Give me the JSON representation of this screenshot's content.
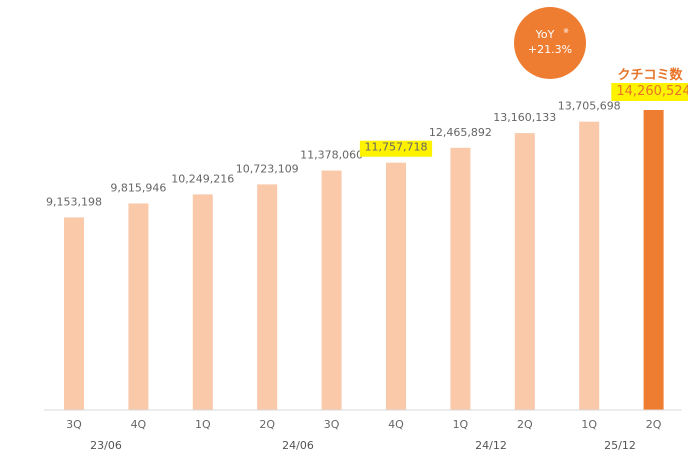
{
  "chart_data": {
    "type": "bar",
    "categories": [
      "3Q",
      "4Q",
      "1Q",
      "2Q",
      "3Q",
      "4Q",
      "1Q",
      "2Q",
      "1Q",
      "2Q"
    ],
    "period_labels": [
      "23/06",
      "24/06",
      "24/12",
      "25/12"
    ],
    "series": [
      {
        "name": "クチコミ数",
        "values": [
          9153198,
          9815946,
          10249216,
          10723109,
          11378060,
          11757718,
          12465892,
          13160133,
          13705698,
          14260524
        ]
      }
    ],
    "value_labels": [
      "9,153,198",
      "9,815,946",
      "10,249,216",
      "10,723,109",
      "11,378,060",
      "11,757,718",
      "12,465,892",
      "13,160,133",
      "13,705,698",
      "14,260,524"
    ],
    "highlighted_value_indices": [
      5,
      9
    ],
    "yoy": {
      "label": "YoY",
      "mark": "※",
      "value": "+21.3%"
    },
    "ylim": [
      0,
      14260524
    ],
    "grid": false,
    "colors": {
      "bar": "#f9c9a9",
      "bar_highlight": "#ee7d31",
      "highlight_bg": "#fff200",
      "yoy_circle": "#ee7d31",
      "axis": "#d9d9d9",
      "title_text": "#e8742a"
    }
  }
}
